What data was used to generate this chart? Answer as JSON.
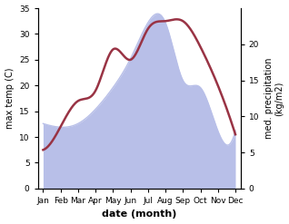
{
  "months": [
    "Jan",
    "Feb",
    "Mar",
    "Apr",
    "May",
    "Jun",
    "Jul",
    "Aug",
    "Sep",
    "Oct",
    "Nov",
    "Dec"
  ],
  "temp": [
    7.5,
    12.0,
    17.0,
    19.0,
    27.0,
    25.0,
    31.0,
    32.5,
    32.5,
    27.5,
    20.0,
    10.5
  ],
  "precip": [
    9.0,
    8.5,
    9.0,
    11.0,
    14.0,
    18.0,
    23.0,
    23.0,
    15.0,
    14.0,
    8.0,
    8.0
  ],
  "temp_color": "#993344",
  "precip_fill_color": "#b8bfe8",
  "xlabel": "date (month)",
  "ylabel_left": "max temp (C)",
  "ylabel_right": "med. precipitation\n(kg/m2)",
  "ylim_left": [
    0,
    35
  ],
  "ylim_right": [
    0,
    25
  ],
  "yticks_left": [
    0,
    5,
    10,
    15,
    20,
    25,
    30,
    35
  ],
  "yticks_right": [
    0,
    5,
    10,
    15,
    20
  ],
  "bg_color": "#ffffff"
}
